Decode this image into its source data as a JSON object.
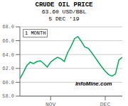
{
  "chart_data": {
    "type": "line",
    "title": "CRUDE OIL PRICE",
    "subtitle": [
      "63.60 USD/BBL",
      "5 DEC '19"
    ],
    "annotations": [
      "1 MONTH",
      "InfoMine.com"
    ],
    "x": [
      0,
      1,
      2,
      3,
      4,
      5,
      6,
      7,
      8,
      9,
      10,
      11,
      12,
      13,
      14,
      15,
      16,
      17,
      18,
      19,
      20,
      21,
      22,
      23,
      24,
      25,
      26,
      27,
      28,
      29,
      30
    ],
    "values": [
      60.5,
      61.4,
      62.4,
      62.9,
      62.7,
      63.0,
      63.1,
      62.7,
      62.2,
      62.9,
      63.3,
      63.6,
      63.4,
      63.0,
      64.3,
      65.2,
      66.3,
      66.6,
      65.9,
      65.1,
      64.9,
      64.3,
      63.6,
      62.9,
      62.2,
      61.6,
      61.1,
      60.9,
      61.2,
      63.2,
      63.6
    ],
    "color": "#00aa55",
    "xlim": [
      0,
      30
    ],
    "xticks": [
      {
        "value": 9,
        "label": "NOV"
      },
      {
        "value": 25,
        "label": "DEC"
      }
    ],
    "ylim": [
      58,
      68
    ],
    "yticks": [
      {
        "value": 58,
        "label": "58.0"
      },
      {
        "value": 60,
        "label": "60.0"
      },
      {
        "value": 62,
        "label": "62.0"
      },
      {
        "value": 64,
        "label": "64.0"
      },
      {
        "value": 66,
        "label": "66.0"
      },
      {
        "value": 68,
        "label": "68.0"
      }
    ],
    "grid": true
  }
}
